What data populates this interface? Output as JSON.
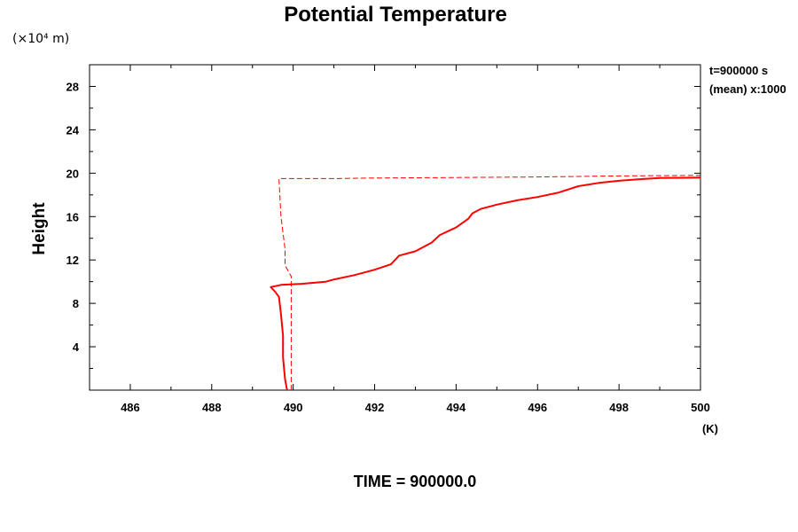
{
  "chart_data": {
    "type": "line",
    "title": "Potential Temperature",
    "ylabel": "Height",
    "y_unit_label": "(×10⁴ m)",
    "x_unit_label": "(K)",
    "xlim": [
      485,
      500
    ],
    "ylim": [
      0,
      30
    ],
    "x_ticks": [
      486,
      488,
      490,
      492,
      494,
      496,
      498,
      500
    ],
    "y_ticks": [
      4,
      8,
      12,
      16,
      20,
      24,
      28
    ],
    "annotation_right": [
      "t=900000 s",
      "(mean) x:1000"
    ],
    "footer": "TIME = 900000.0",
    "grid": false,
    "colors": {
      "series": "#ff0000",
      "axis": "#000000"
    },
    "series": [
      {
        "style": "solid",
        "points": [
          [
            489.85,
            0
          ],
          [
            489.8,
            1
          ],
          [
            489.75,
            3
          ],
          [
            489.75,
            5
          ],
          [
            489.7,
            7
          ],
          [
            489.65,
            8.6
          ],
          [
            489.55,
            9.1
          ],
          [
            489.45,
            9.5
          ],
          [
            489.7,
            9.7
          ],
          [
            490.2,
            9.8
          ],
          [
            490.8,
            10.0
          ],
          [
            491.0,
            10.2
          ],
          [
            491.5,
            10.6
          ],
          [
            492.0,
            11.1
          ],
          [
            492.4,
            11.6
          ],
          [
            492.5,
            12.0
          ],
          [
            492.6,
            12.4
          ],
          [
            493.0,
            12.8
          ],
          [
            493.4,
            13.6
          ],
          [
            493.6,
            14.3
          ],
          [
            494.0,
            15.0
          ],
          [
            494.3,
            15.8
          ],
          [
            494.4,
            16.3
          ],
          [
            494.6,
            16.7
          ],
          [
            495.0,
            17.1
          ],
          [
            495.5,
            17.5
          ],
          [
            496.0,
            17.8
          ],
          [
            496.5,
            18.2
          ],
          [
            497.0,
            18.8
          ],
          [
            497.5,
            19.1
          ],
          [
            498.0,
            19.3
          ],
          [
            498.5,
            19.45
          ],
          [
            499.0,
            19.55
          ],
          [
            500.0,
            19.6
          ]
        ]
      },
      {
        "style": "dashed",
        "points": [
          [
            489.95,
            0
          ],
          [
            489.95,
            10.5
          ],
          [
            489.8,
            11.5
          ],
          [
            489.8,
            13.0
          ],
          [
            489.7,
            16.0
          ],
          [
            489.65,
            19.5
          ],
          [
            491.0,
            19.5
          ],
          [
            492.0,
            19.55
          ],
          [
            494.0,
            19.6
          ],
          [
            496.0,
            19.65
          ],
          [
            498.0,
            19.75
          ],
          [
            500.0,
            19.8
          ]
        ]
      }
    ]
  }
}
